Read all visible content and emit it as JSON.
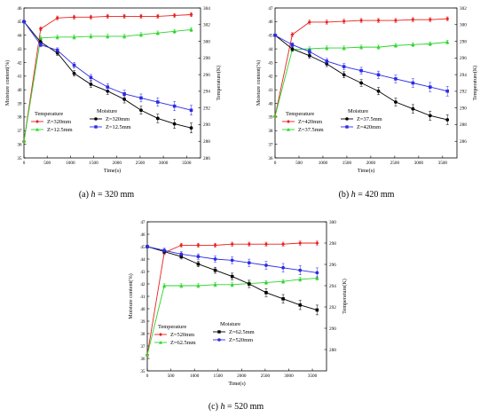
{
  "chart_data": [
    {
      "type": "line",
      "ylabel": "Moisture content(%)",
      "ylabel_right": "Temperature(K)",
      "xlabel": "Time(s)",
      "xlim": [
        0,
        3800
      ],
      "xticks": [
        0,
        500,
        1000,
        1500,
        2000,
        2500,
        3000,
        3500
      ],
      "ylim": [
        35,
        46
      ],
      "yticks": [
        35,
        36,
        37,
        38,
        39,
        40,
        41,
        42,
        43,
        44,
        45,
        46
      ],
      "ylim_right": [
        286,
        304
      ],
      "yticks_right": [
        286,
        288,
        290,
        292,
        294,
        296,
        298,
        300,
        302,
        304
      ],
      "legend": {
        "temperature_title": "Temperature",
        "moisture_title": "Moisture"
      },
      "x": [
        0,
        360,
        720,
        1080,
        1440,
        1800,
        2160,
        2520,
        2880,
        3240,
        3600
      ],
      "series": [
        {
          "name": "Z=320mm",
          "group": "temperature",
          "axis": "right",
          "color": "#e8201e",
          "marker": "diamond",
          "values": [
            288,
            301.5,
            302.8,
            302.9,
            302.9,
            303.0,
            303.0,
            303.0,
            303.0,
            303.1,
            303.2
          ]
        },
        {
          "name": "Z=12.5mm",
          "group": "temperature",
          "axis": "right",
          "color": "#2bd52b",
          "marker": "triangle",
          "values": [
            288,
            300.4,
            300.5,
            300.5,
            300.6,
            300.6,
            300.6,
            300.8,
            301.0,
            301.2,
            301.4
          ]
        },
        {
          "name": "Z=320mm",
          "group": "moisture",
          "axis": "left",
          "color": "#000000",
          "marker": "circle",
          "values": [
            45.0,
            43.5,
            42.7,
            41.2,
            40.4,
            39.9,
            39.3,
            38.5,
            37.9,
            37.5,
            37.2
          ]
        },
        {
          "name": "Z=12.5mm",
          "group": "moisture",
          "axis": "left",
          "color": "#2b2be8",
          "marker": "square",
          "values": [
            45.0,
            43.3,
            42.9,
            41.8,
            40.9,
            40.2,
            39.7,
            39.4,
            39.1,
            38.8,
            38.5
          ]
        }
      ],
      "caption": {
        "label": "(a)",
        "var": "h",
        "text": " = 320 mm"
      }
    },
    {
      "type": "line",
      "ylabel": "Moisture content(%)",
      "ylabel_right": "Temperature(K)",
      "xlabel": "Time(s)",
      "xlim": [
        0,
        3800
      ],
      "xticks": [
        0,
        500,
        1000,
        1500,
        2000,
        2500,
        3000,
        3500
      ],
      "ylim": [
        36,
        47
      ],
      "yticks": [
        36,
        37,
        38,
        39,
        40,
        41,
        42,
        43,
        44,
        45,
        46,
        47
      ],
      "ylim_right": [
        284,
        302
      ],
      "yticks_right": [
        286,
        288,
        290,
        292,
        294,
        296,
        298,
        300,
        302
      ],
      "legend": {
        "temperature_title": "Temperature",
        "moisture_title": "Moisture"
      },
      "x": [
        0,
        360,
        720,
        1080,
        1440,
        1800,
        2160,
        2520,
        2880,
        3240,
        3600
      ],
      "series": [
        {
          "name": "Z=420mm",
          "group": "temperature",
          "axis": "right",
          "color": "#e8201e",
          "marker": "diamond",
          "values": [
            289,
            298.8,
            300.3,
            300.3,
            300.4,
            300.5,
            300.5,
            300.5,
            300.6,
            300.6,
            300.7
          ]
        },
        {
          "name": "Z=37.5mm",
          "group": "temperature",
          "axis": "right",
          "color": "#2bd52b",
          "marker": "triangle",
          "values": [
            289,
            297.0,
            297.1,
            297.2,
            297.2,
            297.3,
            297.3,
            297.5,
            297.6,
            297.7,
            297.9
          ]
        },
        {
          "name": "Z=37.5mm",
          "group": "moisture",
          "axis": "left",
          "color": "#000000",
          "marker": "circle",
          "values": [
            45.0,
            44.0,
            43.5,
            42.9,
            42.1,
            41.5,
            40.9,
            40.1,
            39.6,
            39.1,
            38.8
          ]
        },
        {
          "name": "Z=420mm",
          "group": "moisture",
          "axis": "left",
          "color": "#2b2be8",
          "marker": "square",
          "values": [
            45.0,
            44.3,
            43.8,
            43.1,
            42.7,
            42.4,
            42.1,
            41.8,
            41.5,
            41.2,
            40.9
          ]
        }
      ],
      "caption": {
        "label": "(b)",
        "var": "h",
        "text": " = 420 mm"
      }
    },
    {
      "type": "line",
      "ylabel": "Moisture content(%)",
      "ylabel_right": "Temperature(K)",
      "xlabel": "Time(s)",
      "xlim": [
        0,
        3800
      ],
      "xticks": [
        0,
        500,
        1000,
        1500,
        2000,
        2500,
        3000,
        3500
      ],
      "ylim": [
        35,
        47
      ],
      "yticks": [
        35,
        36,
        37,
        38,
        39,
        40,
        41,
        42,
        43,
        44,
        45,
        46,
        47
      ],
      "ylim_right": [
        286,
        300
      ],
      "yticks_right": [
        288,
        290,
        292,
        294,
        296,
        298,
        300
      ],
      "legend": {
        "temperature_title": "Temperature",
        "moisture_title": "Moisture"
      },
      "x": [
        0,
        360,
        720,
        1080,
        1440,
        1800,
        2160,
        2520,
        2880,
        3240,
        3600
      ],
      "series": [
        {
          "name": "Z=520mm",
          "group": "temperature",
          "axis": "right",
          "color": "#e8201e",
          "marker": "diamond",
          "values": [
            287.5,
            297.1,
            297.8,
            297.8,
            297.8,
            297.9,
            297.9,
            297.9,
            297.9,
            298.0,
            298.0
          ]
        },
        {
          "name": "Z=62.5mm",
          "group": "temperature",
          "axis": "right",
          "color": "#2bd52b",
          "marker": "triangle",
          "values": [
            287.5,
            294.0,
            294.0,
            294.0,
            294.1,
            294.1,
            294.2,
            294.3,
            294.4,
            294.6,
            294.7
          ]
        },
        {
          "name": "Z=62.5mm",
          "group": "moisture",
          "axis": "left",
          "color": "#000000",
          "marker": "square",
          "values": [
            45.0,
            44.6,
            44.2,
            43.6,
            43.1,
            42.6,
            42.0,
            41.3,
            40.8,
            40.3,
            39.9
          ]
        },
        {
          "name": "Z=520mm",
          "group": "moisture",
          "axis": "left",
          "color": "#2b2be8",
          "marker": "circle",
          "values": [
            45.0,
            44.7,
            44.4,
            44.2,
            44.0,
            43.9,
            43.7,
            43.5,
            43.3,
            43.1,
            42.9
          ]
        }
      ],
      "caption": {
        "label": "(c)",
        "var": "h",
        "text": " = 520 mm"
      }
    }
  ]
}
